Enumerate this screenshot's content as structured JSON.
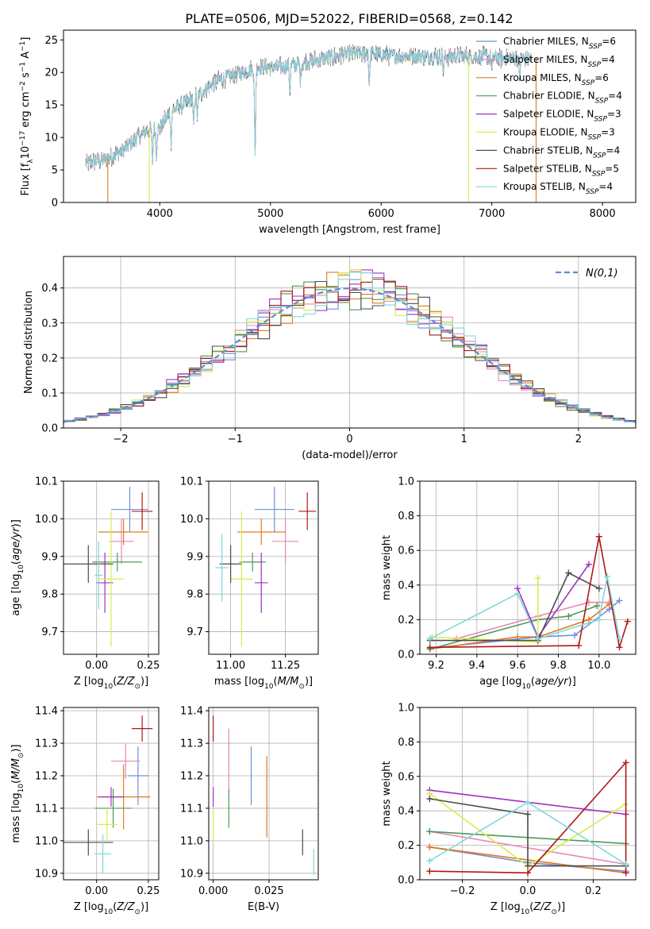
{
  "figure": {
    "title": "PLATE=0506, MJD=52022, FIBERID=0568, z=0.142"
  },
  "colors": {
    "Chabrier MILES": "#6f8fd8",
    "Salpeter MILES": "#e887b8",
    "Kroupa MILES": "#e07a20",
    "Chabrier ELODIE": "#4c9a56",
    "Salpeter ELODIE": "#a030c0",
    "Kroupa ELODIE": "#d6ee4a",
    "Chabrier STELIB": "#4d4d4d",
    "Salpeter STELIB": "#b01818",
    "Kroupa STELIB": "#80d8dc",
    "normal_curve": "#5b8ed8",
    "grid": "#b0b0b0"
  },
  "chart_data": [
    {
      "id": "spectrum",
      "type": "line",
      "xlabel": "wavelength [Angstrom, rest frame]",
      "ylabel": "Flux [f_λ10^-17 erg cm^-2 s^-1 A^-1]",
      "xlim": [
        3130,
        8300
      ],
      "ylim": [
        0,
        26.5
      ],
      "xticks": [
        4000,
        5000,
        6000,
        7000,
        8000
      ],
      "yticks": [
        0,
        5,
        10,
        15,
        20,
        25
      ],
      "grid": false,
      "legend_position": "top-right",
      "legend": [
        {
          "model": "Chabrier MILES",
          "nssp": "6"
        },
        {
          "model": "Salpeter MILES",
          "nssp": "4"
        },
        {
          "model": "Kroupa MILES",
          "nssp": "6"
        },
        {
          "model": "Chabrier ELODIE",
          "nssp": "4"
        },
        {
          "model": "Salpeter ELODIE",
          "nssp": "3"
        },
        {
          "model": "Kroupa ELODIE",
          "nssp": "3"
        },
        {
          "model": "Chabrier STELIB",
          "nssp": "4"
        },
        {
          "model": "Salpeter STELIB",
          "nssp": "5"
        },
        {
          "model": "Kroupa STELIB",
          "nssp": "4"
        }
      ],
      "continuum": [
        [
          3330,
          6.0
        ],
        [
          3500,
          6.6
        ],
        [
          3650,
          7.8
        ],
        [
          3800,
          10.0
        ],
        [
          3900,
          11.3
        ],
        [
          4000,
          11.4
        ],
        [
          4100,
          14.0
        ],
        [
          4300,
          16.0
        ],
        [
          4500,
          18.5
        ],
        [
          4700,
          19.8
        ],
        [
          4900,
          20.8
        ],
        [
          5100,
          20.8
        ],
        [
          5300,
          21.5
        ],
        [
          5500,
          22.2
        ],
        [
          5700,
          22.8
        ],
        [
          5900,
          23.0
        ],
        [
          6100,
          22.5
        ],
        [
          6300,
          22.6
        ],
        [
          6500,
          22.4
        ],
        [
          6700,
          22.5
        ],
        [
          6900,
          22.4
        ],
        [
          7100,
          22.2
        ],
        [
          7300,
          22.2
        ]
      ],
      "absorption": [
        [
          3934,
          5.0
        ],
        [
          3969,
          4.0
        ],
        [
          4102,
          4.5
        ],
        [
          4305,
          4.0
        ],
        [
          4340,
          3.5
        ],
        [
          4861,
          14.0
        ],
        [
          5175,
          4.0
        ],
        [
          5270,
          2.5
        ],
        [
          5893,
          5.0
        ],
        [
          6563,
          2.5
        ],
        [
          7000,
          2.0
        ],
        [
          7250,
          3.0
        ]
      ]
    },
    {
      "id": "residuals",
      "type": "step",
      "xlabel": "(data-model)/error",
      "ylabel": "Normed distribution",
      "xlim": [
        -2.5,
        2.5
      ],
      "ylim": [
        0,
        0.49
      ],
      "xticks": [
        -2,
        -1,
        0,
        1,
        2
      ],
      "yticks": [
        0.0,
        0.1,
        0.2,
        0.3,
        0.4
      ],
      "grid": true,
      "bin_width": 0.1,
      "legend_label": "N(0,1)",
      "legend_position": "top-right"
    },
    {
      "id": "age_vs_Z",
      "type": "errorbar",
      "xlabel": "Z [log10(Z/Z⊙)]",
      "ylabel": "age [log10(age/yr)]",
      "xlim": [
        -0.16,
        0.3
      ],
      "ylim": [
        9.64,
        10.1
      ],
      "xticks": [
        0.0,
        0.25
      ],
      "yticks": [
        9.7,
        9.8,
        9.9,
        10.0,
        10.1
      ],
      "grid": true,
      "points": [
        {
          "model": "Chabrier MILES",
          "x": 0.16,
          "xerr": 0.09,
          "y": 10.025,
          "yerr": 0.06
        },
        {
          "model": "Salpeter MILES",
          "x": 0.12,
          "xerr": 0.06,
          "y": 9.94,
          "yerr": 0.06
        },
        {
          "model": "Kroupa MILES",
          "x": 0.13,
          "xerr": 0.12,
          "y": 9.965,
          "yerr": 0.035
        },
        {
          "model": "Chabrier ELODIE",
          "x": 0.1,
          "xerr": 0.12,
          "y": 9.885,
          "yerr": 0.025
        },
        {
          "model": "Salpeter ELODIE",
          "x": 0.04,
          "xerr": 0.04,
          "y": 9.83,
          "yerr": 0.08
        },
        {
          "model": "Kroupa ELODIE",
          "x": 0.07,
          "xerr": 0.06,
          "y": 9.84,
          "yerr": 0.18
        },
        {
          "model": "Chabrier STELIB",
          "x": -0.04,
          "xerr": 0.12,
          "y": 9.88,
          "yerr": 0.05
        },
        {
          "model": "Salpeter STELIB",
          "x": 0.22,
          "xerr": 0.05,
          "y": 10.02,
          "yerr": 0.05
        },
        {
          "model": "Kroupa STELIB",
          "x": 0.01,
          "xerr": 0.02,
          "y": 9.85,
          "yerr": 0.09
        }
      ]
    },
    {
      "id": "age_vs_mass",
      "type": "errorbar",
      "xlabel": "mass [log10(M/M⊙)]",
      "ylabel": "",
      "xlim": [
        10.9,
        11.4
      ],
      "ylim": [
        9.64,
        10.1
      ],
      "xticks": [
        11.0,
        11.25
      ],
      "yticks": [
        9.7,
        9.8,
        9.9,
        10.0,
        10.1
      ],
      "grid": true,
      "points": [
        {
          "model": "Chabrier MILES",
          "x": 11.2,
          "xerr": 0.09,
          "y": 10.025,
          "yerr": 0.06
        },
        {
          "model": "Salpeter MILES",
          "x": 11.25,
          "xerr": 0.06,
          "y": 9.94,
          "yerr": 0.06
        },
        {
          "model": "Kroupa MILES",
          "x": 11.14,
          "xerr": 0.11,
          "y": 9.965,
          "yerr": 0.035
        },
        {
          "model": "Chabrier ELODIE",
          "x": 11.1,
          "xerr": 0.06,
          "y": 9.885,
          "yerr": 0.025
        },
        {
          "model": "Salpeter ELODIE",
          "x": 11.14,
          "xerr": 0.03,
          "y": 9.83,
          "yerr": 0.08
        },
        {
          "model": "Kroupa ELODIE",
          "x": 11.05,
          "xerr": 0.05,
          "y": 9.84,
          "yerr": 0.18
        },
        {
          "model": "Chabrier STELIB",
          "x": 11.0,
          "xerr": 0.05,
          "y": 9.88,
          "yerr": 0.05
        },
        {
          "model": "Salpeter STELIB",
          "x": 11.35,
          "xerr": 0.04,
          "y": 10.02,
          "yerr": 0.05
        },
        {
          "model": "Kroupa STELIB",
          "x": 10.96,
          "xerr": 0.03,
          "y": 9.87,
          "yerr": 0.09
        }
      ]
    },
    {
      "id": "mass_weight_vs_age",
      "type": "line",
      "xlabel": "age [log10(age/yr)]",
      "ylabel": "mass weight",
      "xlim": [
        9.12,
        10.18
      ],
      "ylim": [
        0,
        1
      ],
      "xticks": [
        9.2,
        9.4,
        9.6,
        9.8,
        10.0
      ],
      "yticks": [
        0.0,
        0.2,
        0.4,
        0.6,
        0.8,
        1.0
      ],
      "grid": true,
      "series": [
        {
          "model": "Chabrier MILES",
          "x": [
            9.17,
            9.7,
            9.88,
            10.05,
            10.1
          ],
          "y": [
            0.035,
            0.1,
            0.11,
            0.26,
            0.31
          ]
        },
        {
          "model": "Salpeter MILES",
          "x": [
            9.3,
            9.7,
            9.95,
            10.05
          ],
          "y": [
            0.09,
            0.22,
            0.3,
            0.3
          ]
        },
        {
          "model": "Kroupa MILES",
          "x": [
            9.17,
            9.6,
            9.7,
            9.95,
            10.05
          ],
          "y": [
            0.03,
            0.1,
            0.1,
            0.2,
            0.29
          ]
        },
        {
          "model": "Chabrier ELODIE",
          "x": [
            9.17,
            9.7,
            9.85,
            9.99
          ],
          "y": [
            0.03,
            0.2,
            0.22,
            0.28
          ]
        },
        {
          "model": "Salpeter ELODIE",
          "x": [
            9.6,
            9.7,
            9.95
          ],
          "y": [
            0.38,
            0.1,
            0.52
          ]
        },
        {
          "model": "Kroupa ELODIE",
          "x": [
            9.18,
            9.7,
            9.7
          ],
          "y": [
            0.1,
            0.07,
            0.44
          ]
        },
        {
          "model": "Chabrier STELIB",
          "x": [
            9.17,
            9.7,
            9.85,
            10.0
          ],
          "y": [
            0.08,
            0.08,
            0.47,
            0.38
          ]
        },
        {
          "model": "Salpeter STELIB",
          "x": [
            9.17,
            9.9,
            10.0,
            10.1,
            10.14
          ],
          "y": [
            0.04,
            0.05,
            0.68,
            0.04,
            0.19
          ]
        },
        {
          "model": "Kroupa STELIB",
          "x": [
            9.17,
            9.6,
            9.7,
            10.0,
            10.04,
            10.1
          ],
          "y": [
            0.09,
            0.35,
            0.09,
            0.2,
            0.45,
            0.09
          ]
        }
      ]
    },
    {
      "id": "mass_vs_Z",
      "type": "errorbar",
      "xlabel": "Z [log10(Z/Z⊙)]",
      "ylabel": "mass [log10(M/M⊙)]",
      "xlim": [
        -0.16,
        0.3
      ],
      "ylim": [
        10.88,
        11.41
      ],
      "xticks": [
        0.0,
        0.25
      ],
      "yticks": [
        10.9,
        11.0,
        11.1,
        11.2,
        11.3,
        11.4
      ],
      "grid": true,
      "points": [
        {
          "model": "Chabrier MILES",
          "x": 0.2,
          "xerr": 0.05,
          "y": 11.2,
          "yerr": 0.09
        },
        {
          "model": "Salpeter MILES",
          "x": 0.14,
          "xerr": 0.07,
          "y": 11.245,
          "yerr": 0.055
        },
        {
          "model": "Kroupa MILES",
          "x": 0.13,
          "xerr": 0.13,
          "y": 11.135,
          "yerr": 0.1
        },
        {
          "model": "Chabrier ELODIE",
          "x": 0.08,
          "xerr": 0.09,
          "y": 11.1,
          "yerr": 0.06
        },
        {
          "model": "Salpeter ELODIE",
          "x": 0.07,
          "xerr": 0.06,
          "y": 11.135,
          "yerr": 0.03
        },
        {
          "model": "Kroupa ELODIE",
          "x": 0.05,
          "xerr": 0.05,
          "y": 11.05,
          "yerr": 0.05
        },
        {
          "model": "Chabrier STELIB",
          "x": -0.04,
          "xerr": 0.12,
          "y": 10.995,
          "yerr": 0.04
        },
        {
          "model": "Salpeter STELIB",
          "x": 0.22,
          "xerr": 0.05,
          "y": 11.345,
          "yerr": 0.04
        },
        {
          "model": "Kroupa STELIB",
          "x": 0.03,
          "xerr": 0.04,
          "y": 10.96,
          "yerr": 0.06
        }
      ]
    },
    {
      "id": "mass_vs_ebv",
      "type": "errorbar",
      "xlabel": "E(B-V)",
      "ylabel": "",
      "xlim": [
        -0.002,
        0.047
      ],
      "ylim": [
        10.88,
        11.41
      ],
      "xticks": [
        0.0,
        0.025
      ],
      "yticks": [
        10.9,
        11.0,
        11.1,
        11.2,
        11.3,
        11.4
      ],
      "grid": true,
      "points": [
        {
          "model": "Chabrier MILES",
          "x": 0.017,
          "xerr": 0,
          "y": 11.2,
          "yerr": 0.09
        },
        {
          "model": "Salpeter MILES",
          "x": 0.007,
          "xerr": 0,
          "y": 11.245,
          "yerr": 0.1
        },
        {
          "model": "Kroupa MILES",
          "x": 0.024,
          "xerr": 0,
          "y": 11.135,
          "yerr": 0.125
        },
        {
          "model": "Chabrier ELODIE",
          "x": 0.007,
          "xerr": 0,
          "y": 11.1,
          "yerr": 0.06
        },
        {
          "model": "Salpeter ELODIE",
          "x": 0.0,
          "xerr": 0,
          "y": 11.135,
          "yerr": 0.03
        },
        {
          "model": "Kroupa ELODIE",
          "x": 0.0,
          "xerr": 0,
          "y": 11.05,
          "yerr": 0.05
        },
        {
          "model": "Chabrier STELIB",
          "x": 0.04,
          "xerr": 0,
          "y": 10.995,
          "yerr": 0.04
        },
        {
          "model": "Salpeter STELIB",
          "x": 0.0,
          "xerr": 0,
          "y": 11.345,
          "yerr": 0.04
        },
        {
          "model": "Kroupa STELIB",
          "x": 0.045,
          "xerr": 0,
          "y": 10.935,
          "yerr": 0.04
        }
      ]
    },
    {
      "id": "mass_weight_vs_Z",
      "type": "line",
      "xlabel": "Z [log10(Z/Z⊙)]",
      "ylabel": "mass weight",
      "xlim": [
        -0.33,
        0.33
      ],
      "ylim": [
        0,
        1
      ],
      "xticks": [
        -0.2,
        0.0,
        0.2
      ],
      "yticks": [
        0.0,
        0.2,
        0.4,
        0.6,
        0.8,
        1.0
      ],
      "grid": true,
      "series": [
        {
          "model": "Chabrier MILES",
          "x": [
            -0.3,
            0.0,
            0.3
          ],
          "y": [
            0.19,
            0.1,
            0.05
          ]
        },
        {
          "model": "Salpeter MILES",
          "x": [
            -0.3,
            0.3
          ],
          "y": [
            0.28,
            0.09
          ]
        },
        {
          "model": "Kroupa MILES",
          "x": [
            -0.3,
            0.3
          ],
          "y": [
            0.19,
            0.04
          ]
        },
        {
          "model": "Chabrier ELODIE",
          "x": [
            -0.3,
            0.3
          ],
          "y": [
            0.28,
            0.21
          ]
        },
        {
          "model": "Salpeter ELODIE",
          "x": [
            -0.3,
            0.3
          ],
          "y": [
            0.52,
            0.38
          ]
        },
        {
          "model": "Kroupa ELODIE",
          "x": [
            -0.3,
            0.0,
            0.3
          ],
          "y": [
            0.5,
            0.08,
            0.44
          ]
        },
        {
          "model": "Chabrier STELIB",
          "x": [
            -0.3,
            0.0,
            0.0,
            0.3
          ],
          "y": [
            0.47,
            0.38,
            0.08,
            0.08
          ]
        },
        {
          "model": "Salpeter STELIB",
          "x": [
            -0.3,
            0.0,
            0.3,
            0.3
          ],
          "y": [
            0.05,
            0.04,
            0.68,
            0.04
          ]
        },
        {
          "model": "Kroupa STELIB",
          "x": [
            -0.3,
            0.0,
            0.3,
            0.3
          ],
          "y": [
            0.11,
            0.45,
            0.09,
            0.09
          ]
        }
      ]
    }
  ]
}
